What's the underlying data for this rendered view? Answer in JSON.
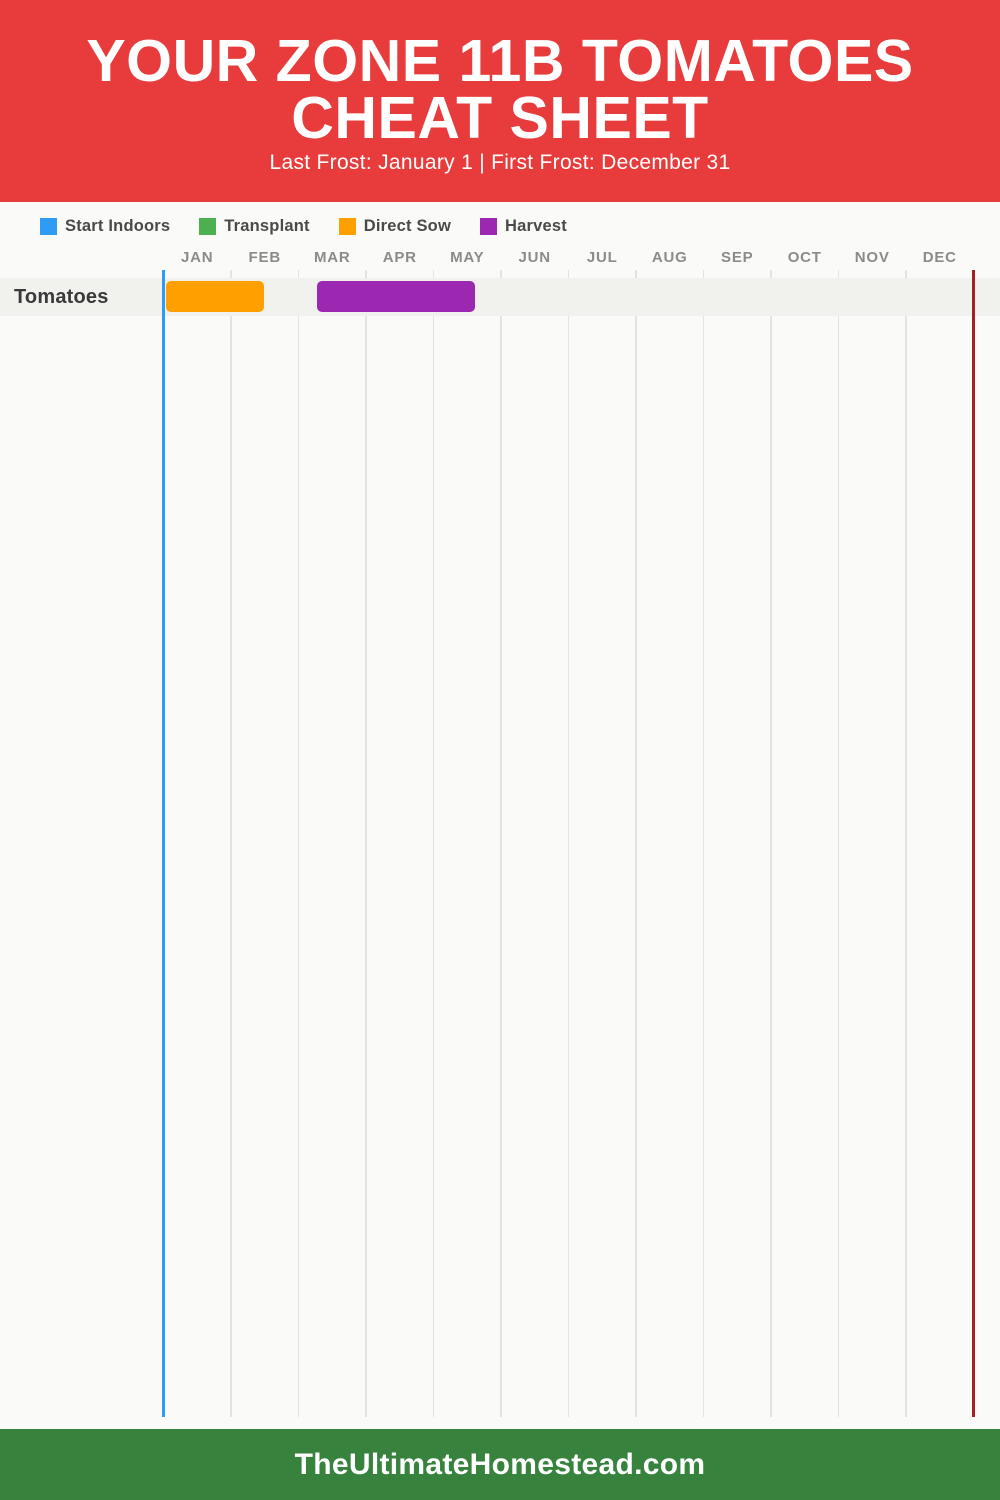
{
  "header": {
    "title_lines": [
      "YOUR ZONE 11B TOMATOES",
      "CHEAT SHEET"
    ],
    "subtitle": "Last Frost: January 1 | First Frost: December 31",
    "background": "#E83B3B"
  },
  "legend": {
    "items": [
      {
        "key": "start-indoors",
        "label": "Start Indoors",
        "color": "#2E9CF4"
      },
      {
        "key": "transplant",
        "label": "Transplant",
        "color": "#4CAF50"
      },
      {
        "key": "direct-sow",
        "label": "Direct Sow",
        "color": "#FFA000"
      },
      {
        "key": "harvest",
        "label": "Harvest",
        "color": "#9C27B0"
      }
    ]
  },
  "chart_data": {
    "type": "gantt",
    "title": "YOUR ZONE 11B TOMATOES CHEAT SHEET",
    "subtitle": "Last Frost: January 1 | First Frost: December 31",
    "months": [
      "JAN",
      "FEB",
      "MAR",
      "APR",
      "MAY",
      "JUN",
      "JUL",
      "AUG",
      "SEP",
      "OCT",
      "NOV",
      "DEC"
    ],
    "grid": true,
    "legend_position": "top-left",
    "rows": [
      {
        "label": "Tomatoes",
        "bars": [
          {
            "category": "Direct Sow",
            "color": "#FFA000",
            "start_month": 0.03,
            "end_month": 1.49,
            "approx_dates": "Jan 1 - Feb 15"
          },
          {
            "category": "Harvest",
            "color": "#9C27B0",
            "start_month": 2.28,
            "end_month": 4.61,
            "approx_dates": "Mar 9 - May 18"
          }
        ]
      }
    ],
    "frost_lines": [
      {
        "name": "last-frost",
        "label": "Last Frost: January 1",
        "month": 0,
        "color": "#2E9CF4"
      },
      {
        "name": "first-frost",
        "label": "First Frost: December 31",
        "month": 12,
        "color": "#A32125"
      }
    ]
  },
  "footer": {
    "text": "TheUltimateHomestead.com",
    "background": "#37823C"
  }
}
